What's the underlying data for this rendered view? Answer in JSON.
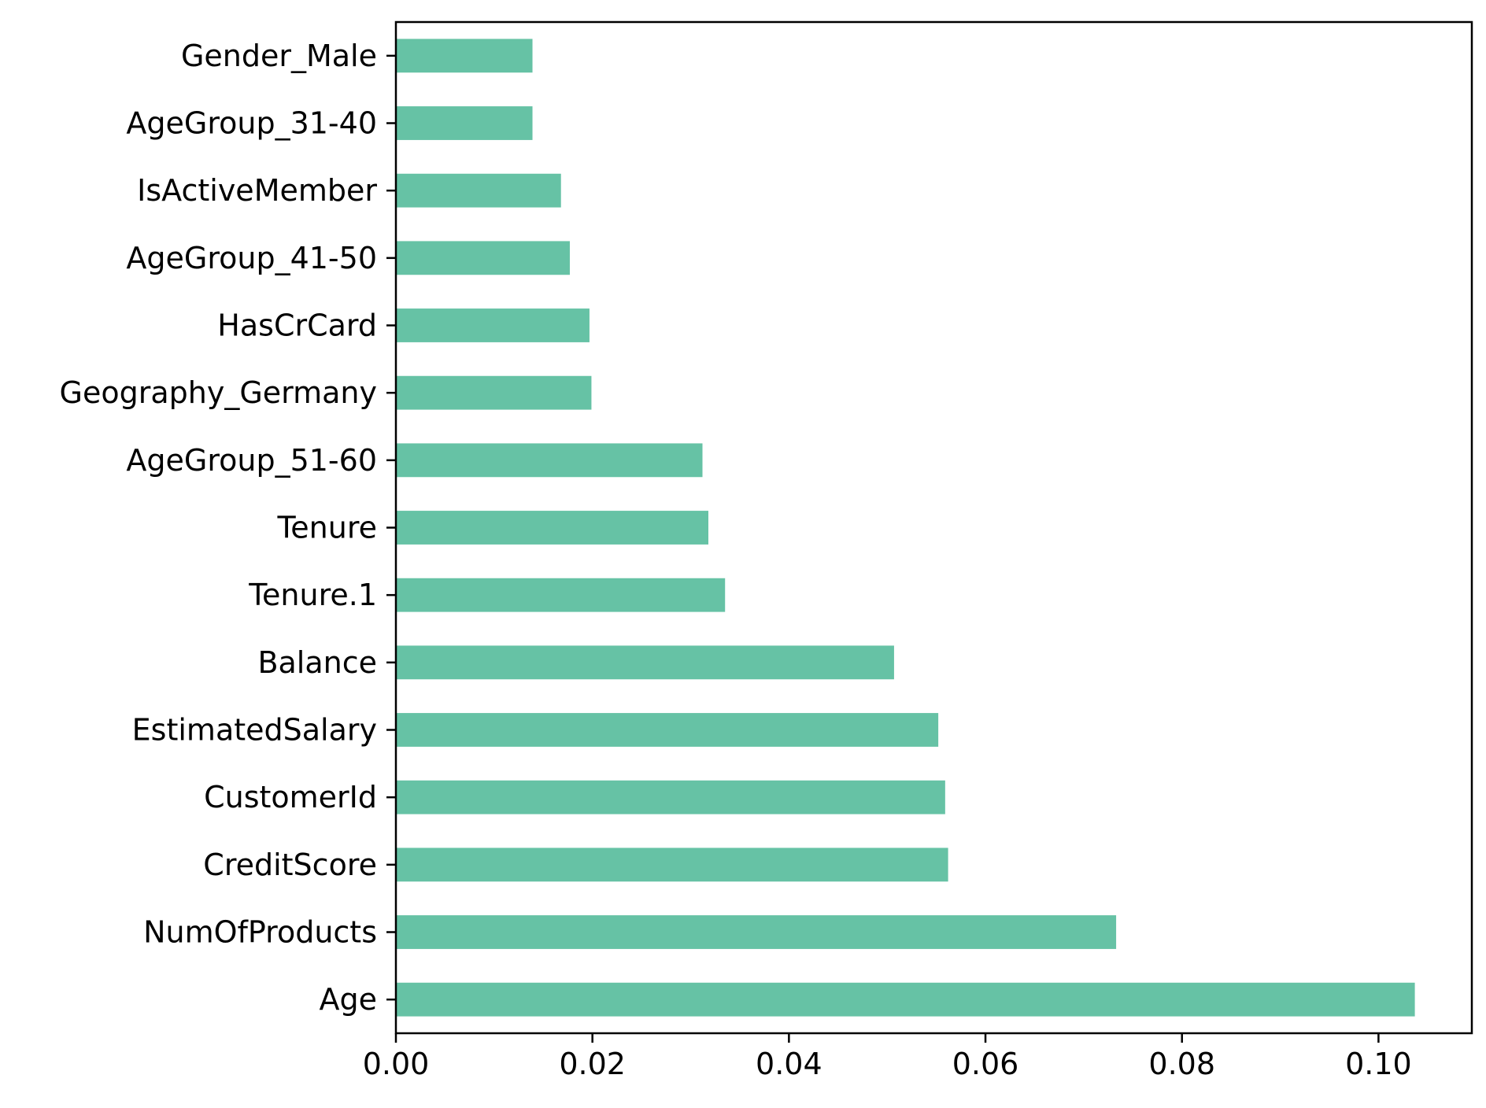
{
  "chart_data": {
    "type": "bar",
    "orientation": "horizontal",
    "categories": [
      "Age",
      "NumOfProducts",
      "CreditScore",
      "CustomerId",
      "EstimatedSalary",
      "Balance",
      "Tenure.1",
      "Tenure",
      "AgeGroup_51-60",
      "Geography_Germany",
      "HasCrCard",
      "AgeGroup_41-50",
      "IsActiveMember",
      "AgeGroup_31-40",
      "Gender_Male"
    ],
    "values": [
      0.1037,
      0.0733,
      0.0562,
      0.0559,
      0.0552,
      0.0507,
      0.0335,
      0.0318,
      0.0312,
      0.0199,
      0.0197,
      0.0177,
      0.0168,
      0.0139,
      0.0139
    ],
    "xlim": [
      0,
      0.1095
    ],
    "xticks": [
      0.0,
      0.02,
      0.04,
      0.06,
      0.08,
      0.1
    ],
    "xtick_labels": [
      "0.00",
      "0.02",
      "0.04",
      "0.06",
      "0.08",
      "0.10"
    ],
    "title": "",
    "xlabel": "",
    "ylabel": "",
    "grid": false,
    "bar_color": "#66c2a5"
  }
}
